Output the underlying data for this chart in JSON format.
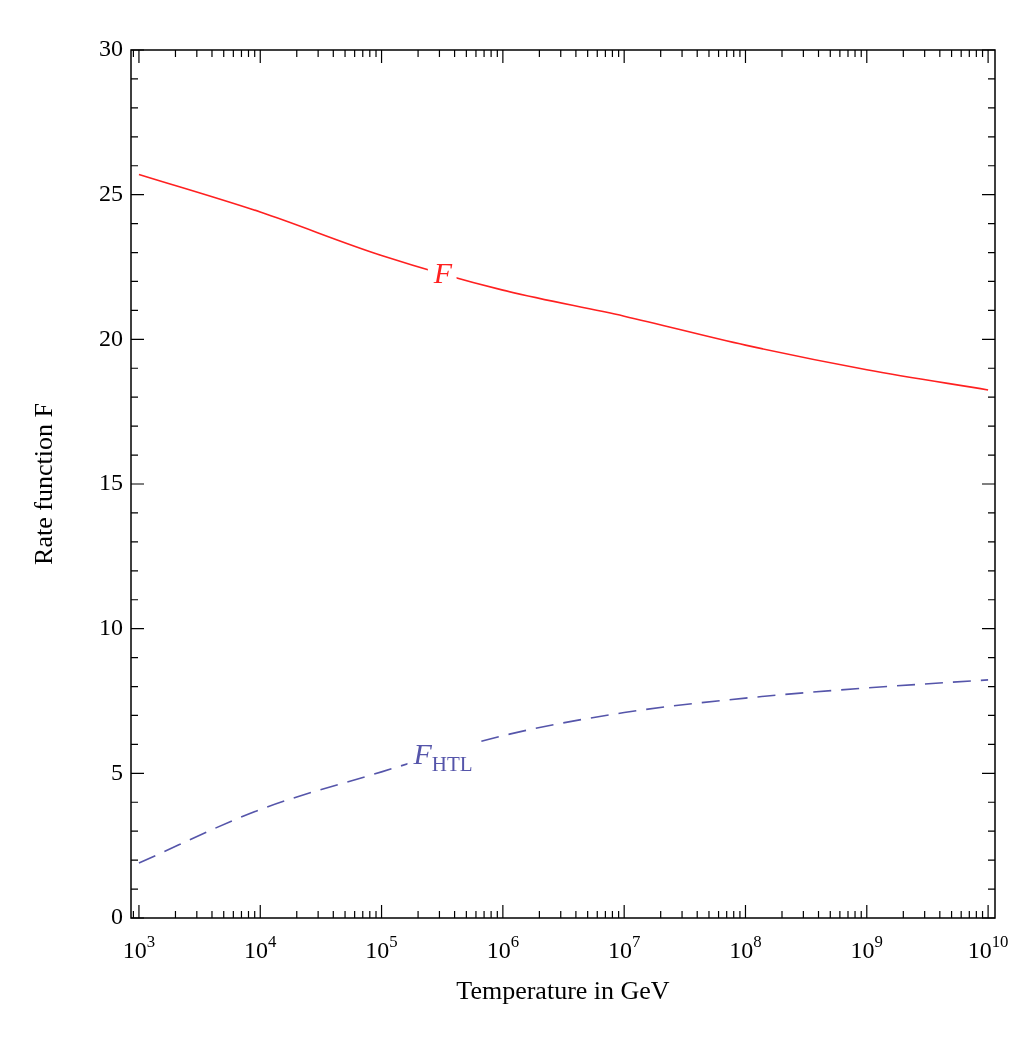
{
  "chart_data": {
    "type": "line",
    "xlabel": "Temperature in GeV",
    "ylabel": "Rate function F",
    "x": [
      1000,
      10000,
      100000,
      1000000,
      10000000,
      100000000,
      1000000000,
      10000000000
    ],
    "series": [
      {
        "name": "F",
        "color": "#ff2020",
        "line_style": "solid",
        "values": [
          25.7,
          24.4,
          22.9,
          21.7,
          20.8,
          19.8,
          18.95,
          18.25
        ]
      },
      {
        "name": "F$_{HTL}$",
        "color": "#5555aa",
        "line_style": "dashed",
        "values": [
          1.9,
          3.75,
          5.05,
          6.3,
          7.1,
          7.6,
          7.95,
          8.23
        ]
      }
    ],
    "log": "x",
    "xlim": [
      860,
      11400000000
    ],
    "ylim": [
      0,
      30
    ],
    "xticks": [
      {
        "value": 900,
        "label": null
      },
      {
        "value": 1000,
        "label": "10$^{3}$"
      },
      {
        "value": 2000,
        "label": null
      },
      {
        "value": 3000,
        "label": null
      },
      {
        "value": 4000,
        "label": null
      },
      {
        "value": 5000,
        "label": null
      },
      {
        "value": 6000,
        "label": null
      },
      {
        "value": 7000,
        "label": null
      },
      {
        "value": 8000,
        "label": null
      },
      {
        "value": 9000,
        "label": null
      },
      {
        "value": 10000,
        "label": "10$^{4}$"
      },
      {
        "value": 20000,
        "label": null
      },
      {
        "value": 30000,
        "label": null
      },
      {
        "value": 40000,
        "label": null
      },
      {
        "value": 50000,
        "label": null
      },
      {
        "value": 60000,
        "label": null
      },
      {
        "value": 70000,
        "label": null
      },
      {
        "value": 80000,
        "label": null
      },
      {
        "value": 90000,
        "label": null
      },
      {
        "value": 100000,
        "label": "10$^{5}$"
      },
      {
        "value": 200000,
        "label": null
      },
      {
        "value": 300000,
        "label": null
      },
      {
        "value": 400000,
        "label": null
      },
      {
        "value": 500000,
        "label": null
      },
      {
        "value": 600000,
        "label": null
      },
      {
        "value": 700000,
        "label": null
      },
      {
        "value": 800000,
        "label": null
      },
      {
        "value": 900000,
        "label": null
      },
      {
        "value": 1000000,
        "label": "10$^{6}$"
      },
      {
        "value": 2000000,
        "label": null
      },
      {
        "value": 3000000,
        "label": null
      },
      {
        "value": 4000000,
        "label": null
      },
      {
        "value": 5000000,
        "label": null
      },
      {
        "value": 6000000,
        "label": null
      },
      {
        "value": 7000000,
        "label": null
      },
      {
        "value": 8000000,
        "label": null
      },
      {
        "value": 9000000,
        "label": null
      },
      {
        "value": 10000000,
        "label": "10$^{7}$"
      },
      {
        "value": 20000000,
        "label": null
      },
      {
        "value": 30000000,
        "label": null
      },
      {
        "value": 40000000,
        "label": null
      },
      {
        "value": 50000000,
        "label": null
      },
      {
        "value": 60000000,
        "label": null
      },
      {
        "value": 70000000,
        "label": null
      },
      {
        "value": 80000000,
        "label": null
      },
      {
        "value": 90000000,
        "label": null
      },
      {
        "value": 100000000,
        "label": "10$^{8}$"
      },
      {
        "value": 200000000,
        "label": null
      },
      {
        "value": 300000000,
        "label": null
      },
      {
        "value": 400000000,
        "label": null
      },
      {
        "value": 500000000,
        "label": null
      },
      {
        "value": 600000000,
        "label": null
      },
      {
        "value": 700000000,
        "label": null
      },
      {
        "value": 800000000,
        "label": null
      },
      {
        "value": 900000000,
        "label": null
      },
      {
        "value": 1000000000,
        "label": "10$^{9}$"
      },
      {
        "value": 2000000000,
        "label": null
      },
      {
        "value": 3000000000,
        "label": null
      },
      {
        "value": 4000000000,
        "label": null
      },
      {
        "value": 5000000000,
        "label": null
      },
      {
        "value": 6000000000,
        "label": null
      },
      {
        "value": 7000000000,
        "label": null
      },
      {
        "value": 8000000000,
        "label": null
      },
      {
        "value": 9000000000,
        "label": null
      },
      {
        "value": 10000000000,
        "label": "10$^{10}$"
      }
    ],
    "yticks": [
      0,
      {
        "value": 1,
        "label": null
      },
      {
        "value": 2,
        "label": null
      },
      {
        "value": 3,
        "label": null
      },
      {
        "value": 4,
        "label": null
      },
      5,
      {
        "value": 6,
        "label": null
      },
      {
        "value": 7,
        "label": null
      },
      {
        "value": 8,
        "label": null
      },
      {
        "value": 9,
        "label": null
      },
      10,
      {
        "value": 11,
        "label": null
      },
      {
        "value": 12,
        "label": null
      },
      {
        "value": 13,
        "label": null
      },
      {
        "value": 14,
        "label": null
      },
      15,
      {
        "value": 16,
        "label": null
      },
      {
        "value": 17,
        "label": null
      },
      {
        "value": 18,
        "label": null
      },
      {
        "value": 19,
        "label": null
      },
      20,
      {
        "value": 21,
        "label": null
      },
      {
        "value": 22,
        "label": null
      },
      {
        "value": 23,
        "label": null
      },
      {
        "value": 24,
        "label": null
      },
      25,
      {
        "value": 26,
        "label": null
      },
      {
        "value": 27,
        "label": null
      },
      {
        "value": 28,
        "label": null
      },
      {
        "value": 29,
        "label": null
      },
      30
    ],
    "grid": false,
    "legend": false,
    "marker": "none"
  }
}
